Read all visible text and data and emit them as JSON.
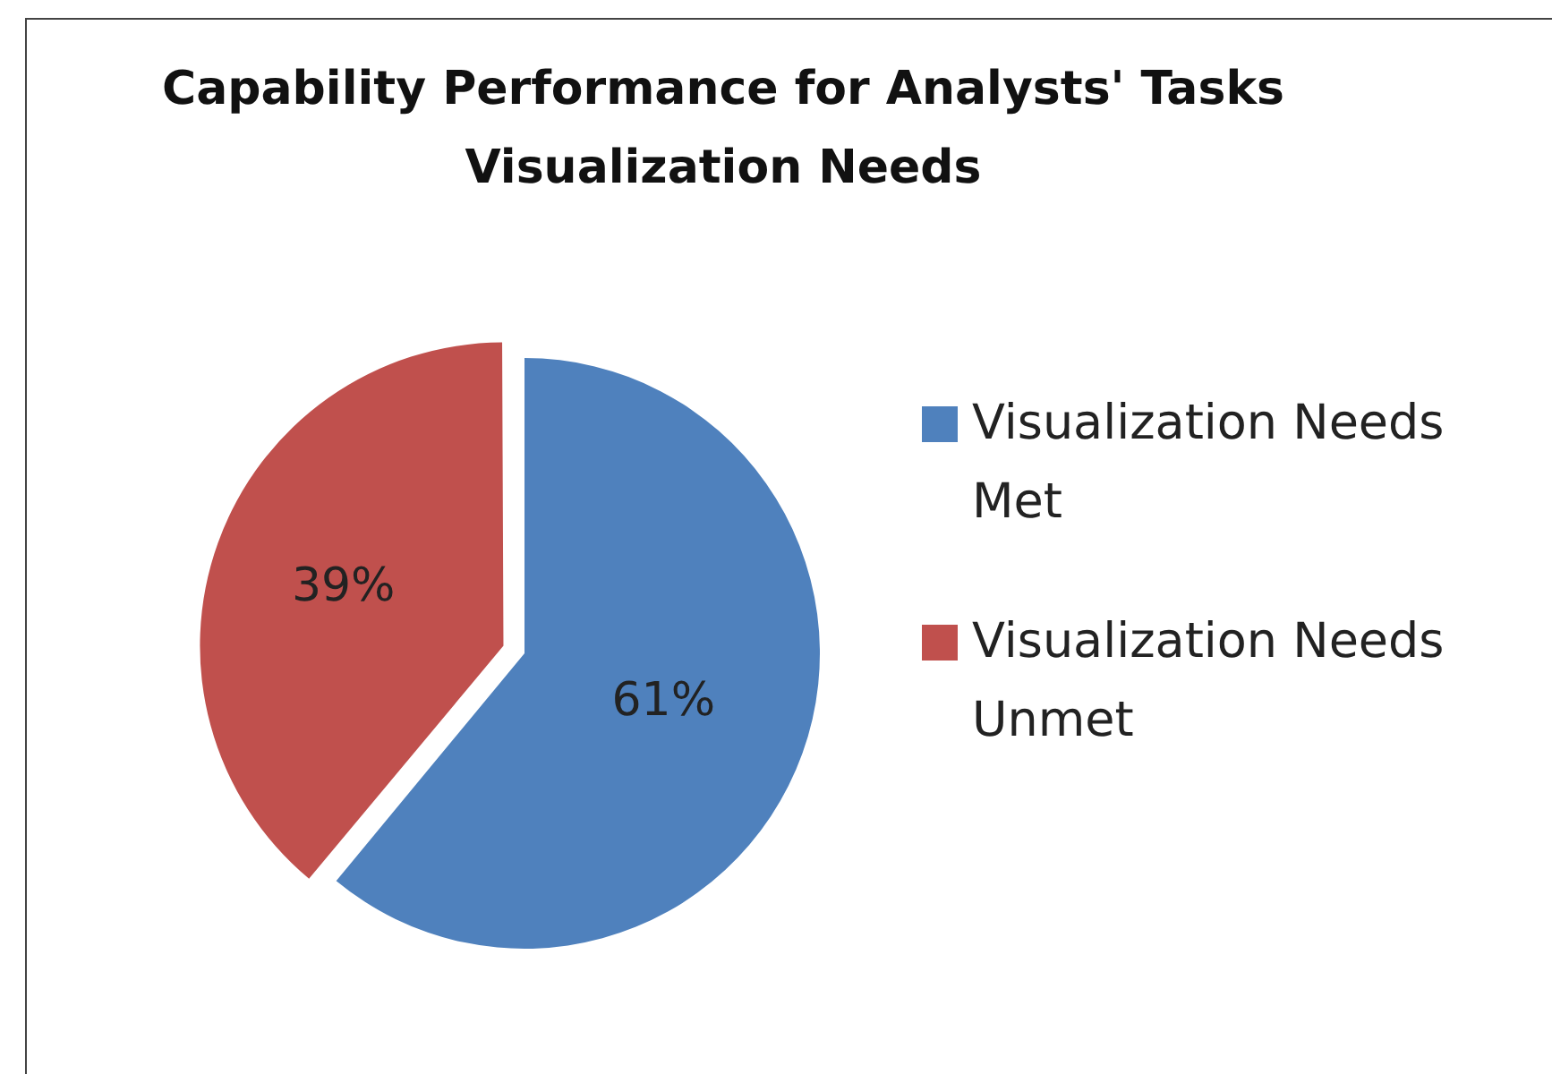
{
  "chart_data": {
    "type": "pie",
    "title": "Capability Performance for Analysts' Tasks\nVisualization Needs",
    "categories": [
      "Visualization Needs Met",
      "Visualization Needs Unmet"
    ],
    "values": [
      61,
      39
    ],
    "colors": [
      "#4f81bd",
      "#c0504d"
    ],
    "value_labels": [
      "61%",
      "39%"
    ],
    "legend": "right"
  }
}
